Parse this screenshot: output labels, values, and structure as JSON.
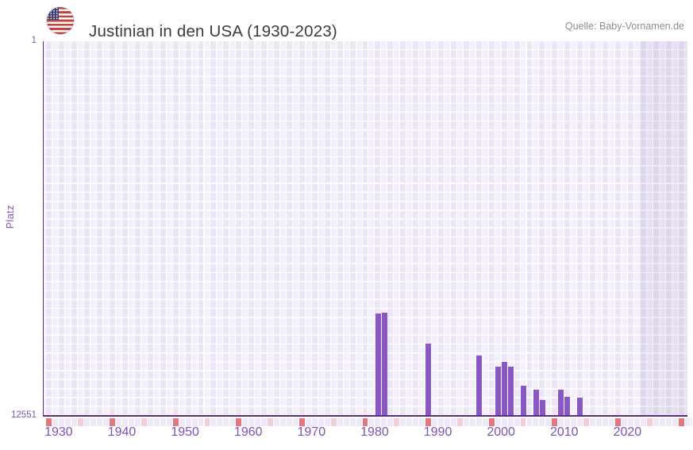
{
  "header": {
    "flag_icon": "us-flag-icon",
    "title": "Justinian in den USA (1930-2023)",
    "source": "Quelle: Baby-Vornamen.de"
  },
  "chart_data": {
    "type": "bar",
    "title": "Justinian in den USA (1930-2023)",
    "xlabel": "",
    "ylabel": "Platz",
    "legend": null,
    "grid": true,
    "y_axis": {
      "min": 1,
      "max": 12551,
      "inverted": true,
      "tick_labels": [
        "1",
        "12551"
      ]
    },
    "x_axis": {
      "min": 1927.5,
      "max": 2029.5,
      "ticks": [
        1930,
        1940,
        1950,
        1960,
        1970,
        1980,
        1990,
        2000,
        2010,
        2020
      ]
    },
    "bars": [
      {
        "year": 1980,
        "rank": 9110
      },
      {
        "year": 1981,
        "rank": 9085
      },
      {
        "year": 1988,
        "rank": 10125
      },
      {
        "year": 1996,
        "rank": 10525
      },
      {
        "year": 1999,
        "rank": 10895
      },
      {
        "year": 2000,
        "rank": 10735
      },
      {
        "year": 2001,
        "rank": 10895
      },
      {
        "year": 2003,
        "rank": 11535
      },
      {
        "year": 2005,
        "rank": 11675
      },
      {
        "year": 2006,
        "rank": 12010
      },
      {
        "year": 2009,
        "rank": 11675
      },
      {
        "year": 2010,
        "rank": 11905
      },
      {
        "year": 2012,
        "rank": 11930
      }
    ],
    "future_region": {
      "start_year": 2022
    },
    "timeline_markers": {
      "red_years_every10_from": 1928,
      "pink_years_every10_from": 1933
    },
    "colors": {
      "bar": "#8a57c4",
      "axis_line": "#5a2b87",
      "tick_label": "#7e51b5",
      "grid_cell_light": "#f4f0fb",
      "grid_cell_dark": "#ece5f6",
      "future_tint": "rgba(93,71,150,0.09)",
      "strip_default": "#ede9f6",
      "strip_red": "#e4757c",
      "strip_pink": "#f3cdd7",
      "title_text": "#3b3b3b",
      "source_text": "#8d8d8d"
    }
  }
}
